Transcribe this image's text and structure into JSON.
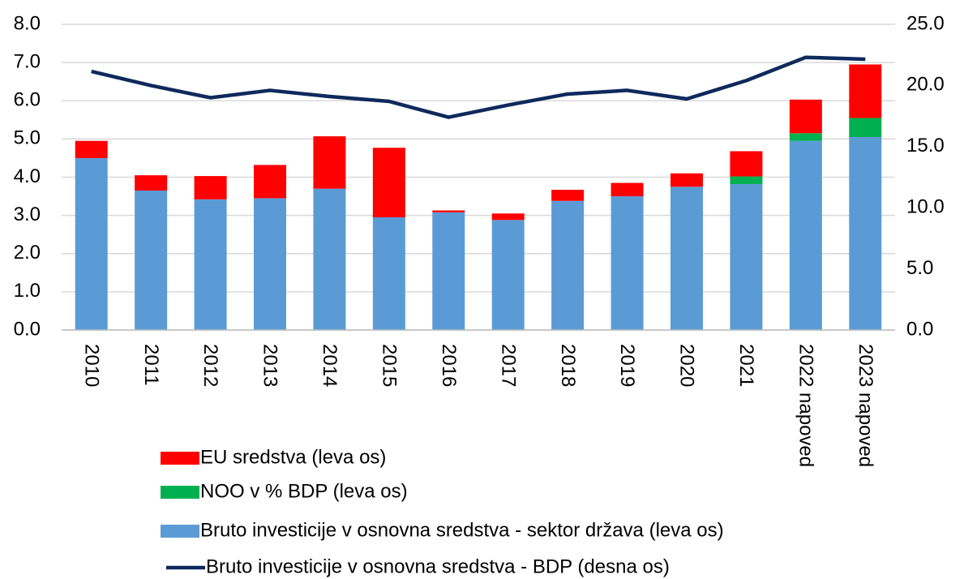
{
  "chart_data": {
    "type": "bar",
    "categories": [
      "2010",
      "2011",
      "2012",
      "2013",
      "2014",
      "2015",
      "2016",
      "2017",
      "2018",
      "2019",
      "2020",
      "2021",
      "2022 napoved",
      "2023 napoved"
    ],
    "series": [
      {
        "name": "EU sredstva (leva os)",
        "type": "bar",
        "color": "#ff0000",
        "values": [
          0.45,
          0.4,
          0.61,
          0.87,
          1.37,
          1.82,
          0.05,
          0.17,
          0.29,
          0.35,
          0.35,
          0.66,
          0.88,
          1.4
        ]
      },
      {
        "name": "NOO v % BDP (leva os)",
        "type": "bar",
        "color": "#00b050",
        "values": [
          0,
          0,
          0,
          0,
          0,
          0,
          0,
          0,
          0,
          0,
          0,
          0.2,
          0.2,
          0.5
        ]
      },
      {
        "name": "Bruto investicije v osnovna sredstva - sektor država (leva os)",
        "type": "bar",
        "color": "#5b9bd5",
        "values": [
          4.5,
          3.65,
          3.42,
          3.45,
          3.7,
          2.95,
          3.08,
          2.88,
          3.38,
          3.5,
          3.75,
          3.82,
          4.95,
          5.05
        ]
      },
      {
        "name": "Bruto investicije v osnovna sredstva - BDP (desna os)",
        "type": "line",
        "axis": "y2",
        "color": "#0e2a5c",
        "values": [
          21.15,
          20.0,
          19.0,
          19.6,
          19.1,
          18.7,
          17.4,
          18.4,
          19.3,
          19.6,
          18.9,
          20.4,
          22.3,
          22.15
        ]
      }
    ],
    "ylim": [
      0,
      8
    ],
    "yticks": [
      {
        "value": 0,
        "label": "0.0"
      },
      {
        "value": 1,
        "label": "1.0"
      },
      {
        "value": 2,
        "label": "2.0"
      },
      {
        "value": 3,
        "label": "3.0"
      },
      {
        "value": 4,
        "label": "4.0"
      },
      {
        "value": 5,
        "label": "5.0"
      },
      {
        "value": 6,
        "label": "6.0"
      },
      {
        "value": 7,
        "label": "7.0"
      },
      {
        "value": 8,
        "label": "8.0"
      }
    ],
    "y2lim": [
      0,
      25
    ],
    "y2ticks": [
      {
        "value": 0,
        "label": "0.0"
      },
      {
        "value": 5,
        "label": "5.0"
      },
      {
        "value": 10,
        "label": "10.0"
      },
      {
        "value": 15,
        "label": "15.0"
      },
      {
        "value": 20,
        "label": "20.0"
      },
      {
        "value": 25,
        "label": "25.0"
      }
    ],
    "grid": true,
    "legend": "bottom"
  }
}
